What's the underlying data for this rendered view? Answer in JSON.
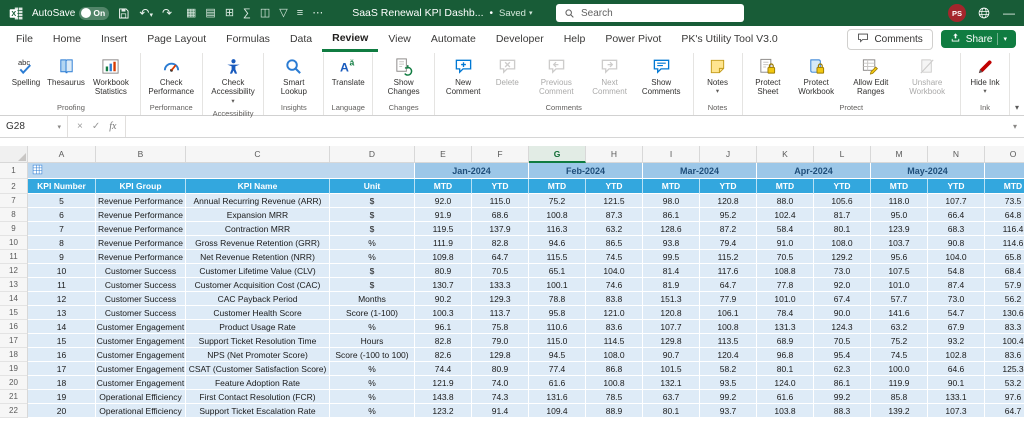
{
  "colors": {
    "titlebar-green": "#185C37",
    "accent-green": "#107C41",
    "month-bg": "#9CC7E8",
    "month-text": "#1F4E79",
    "hdr-bg": "#33A7DE",
    "cell-bg": "#DEEBF7",
    "band-bg": "#BDD7EE",
    "avatar-bg": "#A4262C"
  },
  "titlebar": {
    "autosave_label": "AutoSave",
    "autosave_state": "On",
    "doc_title": "SaaS Renewal KPI Dashb...",
    "title_separator": "•",
    "saved_label": "Saved",
    "search_placeholder": "Search",
    "avatar_initials": "PS",
    "quick_access": [
      {
        "name": "borders",
        "glyph": "▦"
      },
      {
        "name": "insert-table",
        "glyph": "▤"
      },
      {
        "name": "insert-cells",
        "glyph": "⊞"
      },
      {
        "name": "autosum",
        "glyph": "∑"
      },
      {
        "name": "freeze-panes",
        "glyph": "◫"
      },
      {
        "name": "filter",
        "glyph": "▽"
      },
      {
        "name": "view-gridlines",
        "glyph": "≡"
      },
      {
        "name": "more-commands",
        "glyph": "⋯"
      }
    ]
  },
  "tabs": {
    "items": [
      "File",
      "Home",
      "Insert",
      "Page Layout",
      "Formulas",
      "Data",
      "Review",
      "View",
      "Automate",
      "Developer",
      "Help",
      "Power Pivot",
      "PK's Utility Tool V3.0"
    ],
    "active": "Review",
    "comments_label": "Comments",
    "share_label": "Share"
  },
  "ribbon": {
    "groups": [
      {
        "label": "Proofing",
        "buttons": [
          {
            "label": "Spelling",
            "icon": "spelling"
          },
          {
            "label": "Thesaurus",
            "icon": "thesaurus"
          },
          {
            "label": "Workbook Statistics",
            "icon": "workbook-statistics"
          }
        ]
      },
      {
        "label": "Performance",
        "buttons": [
          {
            "label": "Check Performance",
            "icon": "check-performance"
          }
        ]
      },
      {
        "label": "Accessibility",
        "buttons": [
          {
            "label": "Check Accessibility",
            "icon": "check-accessibility",
            "dropdown": true
          }
        ]
      },
      {
        "label": "Insights",
        "buttons": [
          {
            "label": "Smart Lookup",
            "icon": "smart-lookup"
          }
        ]
      },
      {
        "label": "Language",
        "buttons": [
          {
            "label": "Translate",
            "icon": "translate"
          }
        ]
      },
      {
        "label": "Changes",
        "buttons": [
          {
            "label": "Show Changes",
            "icon": "show-changes"
          }
        ]
      },
      {
        "label": "Comments",
        "buttons": [
          {
            "label": "New Comment",
            "icon": "new-comment"
          },
          {
            "label": "Delete",
            "icon": "delete-comment",
            "disabled": true
          },
          {
            "label": "Previous Comment",
            "icon": "previous-comment",
            "disabled": true
          },
          {
            "label": "Next Comment",
            "icon": "next-comment",
            "disabled": true
          },
          {
            "label": "Show Comments",
            "icon": "show-comments"
          }
        ]
      },
      {
        "label": "Notes",
        "buttons": [
          {
            "label": "Notes",
            "icon": "notes",
            "dropdown": true
          }
        ]
      },
      {
        "label": "Protect",
        "buttons": [
          {
            "label": "Protect Sheet",
            "icon": "protect-sheet"
          },
          {
            "label": "Protect Workbook",
            "icon": "protect-workbook"
          },
          {
            "label": "Allow Edit Ranges",
            "icon": "allow-edit-ranges"
          },
          {
            "label": "Unshare Workbook",
            "icon": "unshare-workbook",
            "disabled": true
          }
        ]
      },
      {
        "label": "Ink",
        "buttons": [
          {
            "label": "Hide Ink",
            "icon": "hide-ink",
            "dropdown": true
          }
        ]
      }
    ]
  },
  "formula_bar": {
    "name_box": "G28",
    "cancel": "×",
    "enter": "✓",
    "fx": "fx",
    "value": ""
  },
  "grid": {
    "column_letters": [
      "A",
      "B",
      "C",
      "D",
      "E",
      "F",
      "G",
      "H",
      "I",
      "J",
      "K",
      "L",
      "M",
      "N",
      "O"
    ],
    "active_column": "G",
    "header_row_numbers": [
      1,
      2
    ],
    "month_headers": [
      "Jan-2024",
      "Feb-2024",
      "Mar-2024",
      "Apr-2024",
      "May-2024"
    ],
    "left_headers": [
      "KPI Number",
      "KPI Group",
      "KPI Name",
      "Unit"
    ],
    "period_headers": [
      "MTD",
      "YTD"
    ],
    "rows": [
      {
        "row": 7,
        "kpi": 5,
        "group": "Revenue Performance",
        "name": "Annual Recurring Revenue (ARR)",
        "unit": "$",
        "values": [
          92.0,
          115.0,
          75.2,
          121.5,
          98.0,
          120.8,
          88.0,
          105.6,
          118.0,
          107.7,
          73.5
        ]
      },
      {
        "row": 8,
        "kpi": 6,
        "group": "Revenue Performance",
        "name": "Expansion MRR",
        "unit": "$",
        "values": [
          91.9,
          68.6,
          100.8,
          87.3,
          86.1,
          95.2,
          102.4,
          81.7,
          95.0,
          66.4,
          64.8
        ]
      },
      {
        "row": 9,
        "kpi": 7,
        "group": "Revenue Performance",
        "name": "Contraction MRR",
        "unit": "$",
        "values": [
          119.5,
          137.9,
          116.3,
          63.2,
          128.6,
          87.2,
          58.4,
          80.1,
          123.9,
          68.3,
          116.4
        ]
      },
      {
        "row": 10,
        "kpi": 8,
        "group": "Revenue Performance",
        "name": "Gross Revenue Retention (GRR)",
        "unit": "%",
        "values": [
          111.9,
          82.8,
          94.6,
          86.5,
          93.8,
          79.4,
          91.0,
          108.0,
          103.7,
          90.8,
          114.6
        ]
      },
      {
        "row": 11,
        "kpi": 9,
        "group": "Revenue Performance",
        "name": "Net Revenue Retention (NRR)",
        "unit": "%",
        "values": [
          109.8,
          64.7,
          115.5,
          74.5,
          99.5,
          115.2,
          70.5,
          129.2,
          95.6,
          104.0,
          65.8
        ]
      },
      {
        "row": 12,
        "kpi": 10,
        "group": "Customer Success",
        "name": "Customer Lifetime Value (CLV)",
        "unit": "$",
        "values": [
          80.9,
          70.5,
          65.1,
          104.0,
          81.4,
          117.6,
          108.8,
          73.0,
          107.5,
          54.8,
          68.4
        ]
      },
      {
        "row": 13,
        "kpi": 11,
        "group": "Customer Success",
        "name": "Customer Acquisition Cost (CAC)",
        "unit": "$",
        "values": [
          130.7,
          133.3,
          100.1,
          74.6,
          81.9,
          64.7,
          77.8,
          92.0,
          101.0,
          87.4,
          57.9
        ]
      },
      {
        "row": 14,
        "kpi": 12,
        "group": "Customer Success",
        "name": "CAC Payback Period",
        "unit": "Months",
        "values": [
          90.2,
          129.3,
          78.8,
          83.8,
          151.3,
          77.9,
          101.0,
          67.4,
          57.7,
          73.0,
          56.2
        ]
      },
      {
        "row": 15,
        "kpi": 13,
        "group": "Customer Success",
        "name": "Customer Health Score",
        "unit": "Score (1-100)",
        "values": [
          100.3,
          113.7,
          95.8,
          121.0,
          120.8,
          106.1,
          78.4,
          90.0,
          141.6,
          54.7,
          130.6
        ]
      },
      {
        "row": 16,
        "kpi": 14,
        "group": "Customer Engagement",
        "name": "Product Usage Rate",
        "unit": "%",
        "values": [
          96.1,
          75.8,
          110.6,
          83.6,
          107.7,
          100.8,
          131.3,
          124.3,
          63.2,
          67.9,
          83.3
        ]
      },
      {
        "row": 17,
        "kpi": 15,
        "group": "Customer Engagement",
        "name": "Support Ticket Resolution Time",
        "unit": "Hours",
        "values": [
          82.8,
          79.0,
          115.0,
          114.5,
          129.8,
          113.5,
          68.9,
          70.5,
          75.2,
          93.2,
          100.4
        ]
      },
      {
        "row": 18,
        "kpi": 16,
        "group": "Customer Engagement",
        "name": "NPS (Net Promoter Score)",
        "unit": "Score (-100 to 100)",
        "values": [
          82.6,
          129.8,
          94.5,
          108.0,
          90.7,
          120.4,
          96.8,
          95.4,
          74.5,
          102.8,
          83.6
        ]
      },
      {
        "row": 19,
        "kpi": 17,
        "group": "Customer Engagement",
        "name": "CSAT (Customer Satisfaction Score)",
        "unit": "%",
        "values": [
          74.4,
          80.9,
          77.4,
          86.8,
          101.5,
          58.2,
          80.1,
          62.3,
          100.0,
          64.6,
          125.3
        ]
      },
      {
        "row": 20,
        "kpi": 18,
        "group": "Customer Engagement",
        "name": "Feature Adoption Rate",
        "unit": "%",
        "values": [
          121.9,
          74.0,
          61.6,
          100.8,
          132.1,
          93.5,
          124.0,
          86.1,
          119.9,
          90.1,
          53.2
        ]
      },
      {
        "row": 21,
        "kpi": 19,
        "group": "Operational Efficiency",
        "name": "First Contact Resolution (FCR)",
        "unit": "%",
        "values": [
          143.8,
          74.3,
          131.6,
          78.5,
          63.7,
          99.2,
          61.6,
          99.2,
          85.8,
          133.1,
          97.6
        ]
      },
      {
        "row": 22,
        "kpi": 20,
        "group": "Operational Efficiency",
        "name": "Support Ticket Escalation Rate",
        "unit": "%",
        "values": [
          123.2,
          91.4,
          109.4,
          88.9,
          80.1,
          93.7,
          103.8,
          88.3,
          139.2,
          107.3,
          64.7
        ]
      }
    ]
  }
}
